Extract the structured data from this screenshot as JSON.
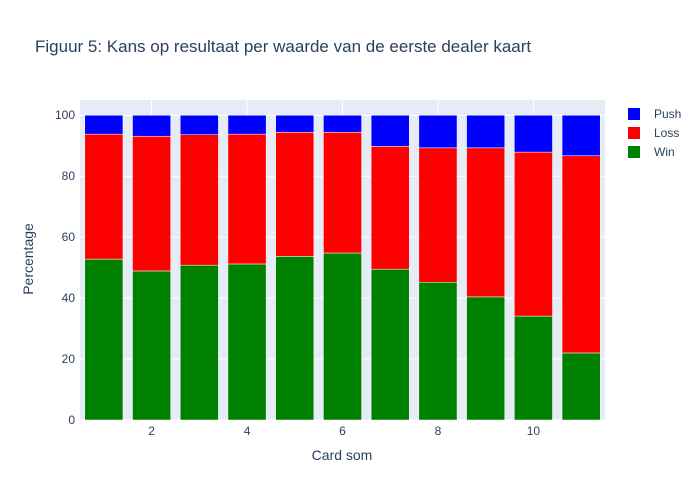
{
  "chart_data": {
    "type": "bar",
    "stacked": true,
    "title": "Figuur 5: Kans op resultaat per waarde van de eerste dealer kaart",
    "xlabel": "Card som",
    "ylabel": "Percentage",
    "x": [
      1,
      2,
      3,
      4,
      5,
      6,
      7,
      8,
      9,
      10,
      11
    ],
    "xlim": [
      0.5,
      11.5
    ],
    "ylim": [
      0,
      105
    ],
    "xticks": [
      2,
      4,
      6,
      8,
      10
    ],
    "yticks": [
      0,
      20,
      40,
      60,
      80,
      100
    ],
    "grid": true,
    "legend_position": "top-right",
    "background_color": "#e5ecf6",
    "series": [
      {
        "name": "Win",
        "color": "#008000",
        "values": [
          52.8,
          48.9,
          50.8,
          51.2,
          53.7,
          54.8,
          49.5,
          45.2,
          40.4,
          34.1,
          22.0
        ]
      },
      {
        "name": "Loss",
        "color": "#ff0000",
        "values": [
          41.0,
          44.2,
          42.8,
          42.6,
          40.7,
          39.6,
          40.3,
          44.1,
          48.9,
          53.8,
          64.7
        ]
      },
      {
        "name": "Push",
        "color": "#0000ff",
        "values": [
          6.2,
          6.9,
          6.4,
          6.2,
          5.6,
          5.6,
          10.2,
          10.7,
          10.7,
          12.1,
          13.3
        ]
      }
    ]
  }
}
